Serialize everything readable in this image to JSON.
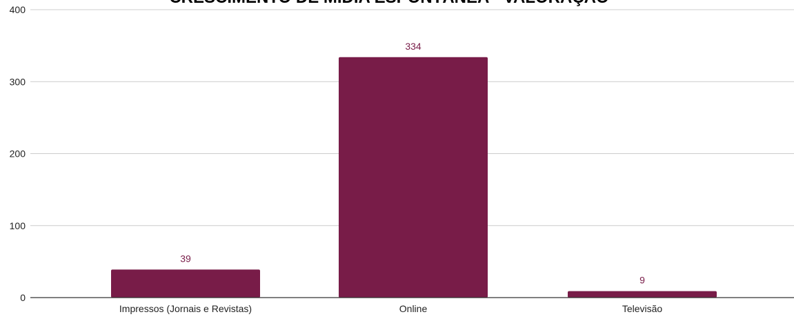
{
  "chart_data": {
    "type": "bar",
    "title": "CRESCIMENTO DE MÍDIA ESPONTÂNEA - VALORAÇÃO",
    "categories": [
      "Impressos (Jornais e Revistas)",
      "Online",
      "Televisão"
    ],
    "values": [
      39,
      334,
      9
    ],
    "data_labels": [
      "39",
      "334",
      "9"
    ],
    "ylim": [
      0,
      400
    ],
    "yticks": [
      0,
      100,
      200,
      300,
      400
    ],
    "ytick_labels": [
      "0",
      "100",
      "200",
      "300",
      "400"
    ],
    "xlabel": "",
    "ylabel": "",
    "grid": true,
    "legend": "none",
    "bar_color": "#781c48",
    "label_color": "#781c48"
  }
}
